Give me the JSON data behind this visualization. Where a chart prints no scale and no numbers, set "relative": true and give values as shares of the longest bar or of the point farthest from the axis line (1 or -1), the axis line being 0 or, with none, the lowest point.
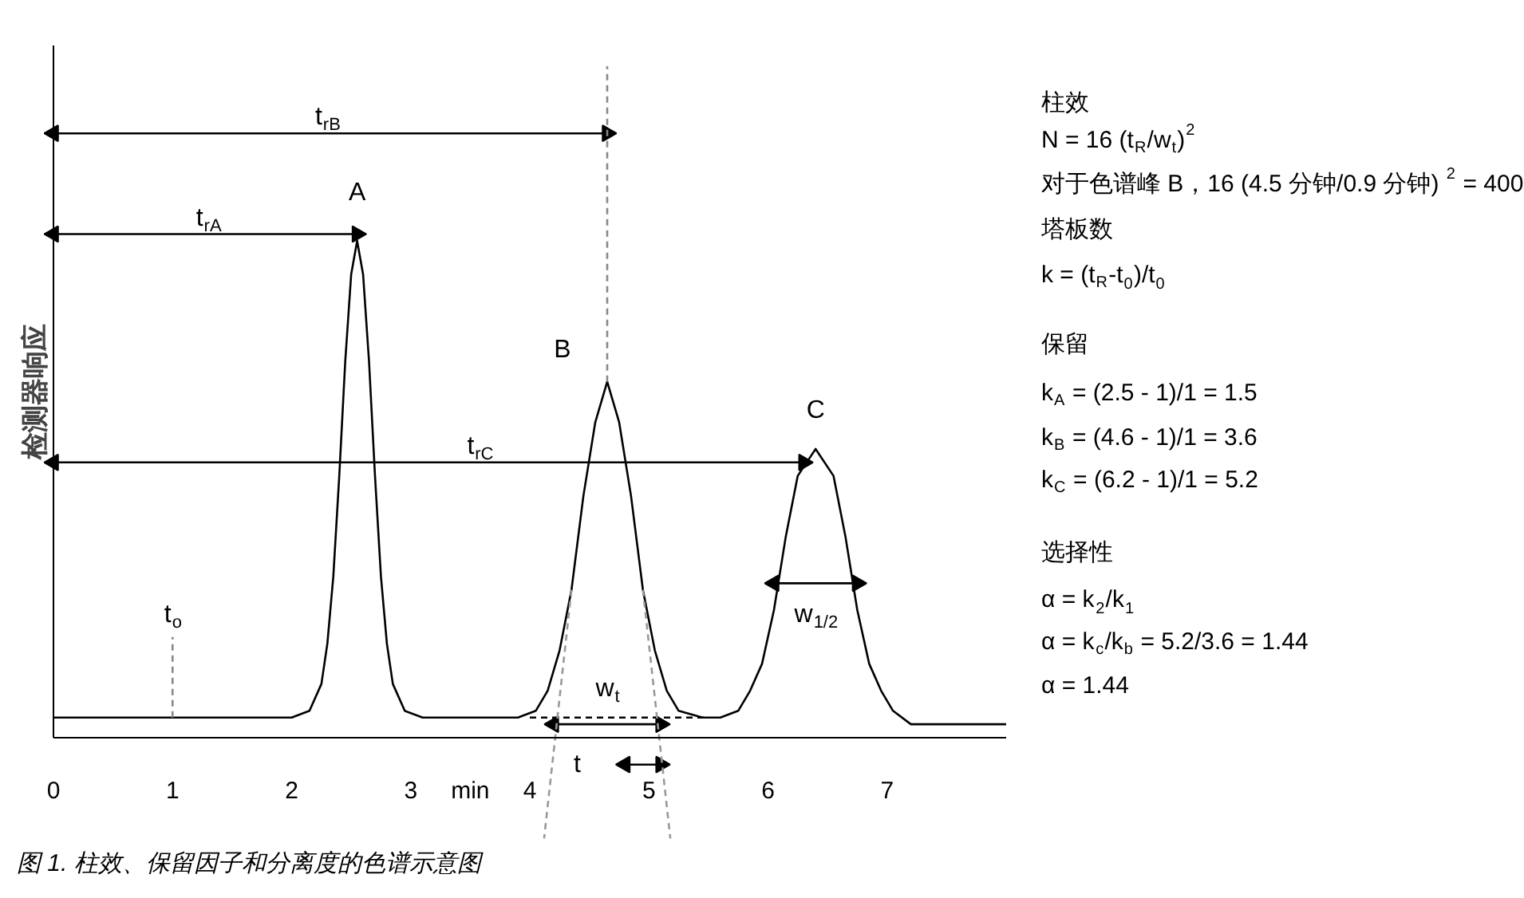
{
  "chart_data": {
    "type": "line",
    "relative": true,
    "ylabel": "检测器响应",
    "tick_labels": "x",
    "xlim": [
      0,
      8
    ],
    "xticks": [
      0,
      1,
      2,
      3,
      {
        "value": 3.5,
        "label": "min"
      },
      4,
      5,
      6,
      7
    ],
    "series": [
      {
        "color": "#000000",
        "line_style": "solid",
        "x": [
          0,
          2.0,
          2.15,
          2.25,
          2.3,
          2.35,
          2.4,
          2.45,
          2.5,
          2.55,
          2.6,
          2.65,
          2.7,
          2.75,
          2.8,
          2.85,
          2.95,
          3.1,
          3.9,
          4.05,
          4.15,
          4.25,
          4.35,
          4.45,
          4.55,
          4.65,
          4.75,
          4.85,
          4.95,
          5.05,
          5.15,
          5.25,
          5.45,
          5.6,
          5.75,
          5.85,
          5.95,
          6.05,
          6.15,
          6.25,
          6.4,
          6.55,
          6.65,
          6.75,
          6.85,
          6.95,
          7.05,
          7.2,
          8.0
        ],
        "values": [
          0.03,
          0.03,
          0.04,
          0.08,
          0.14,
          0.24,
          0.39,
          0.56,
          0.69,
          0.74,
          0.69,
          0.56,
          0.39,
          0.24,
          0.14,
          0.08,
          0.04,
          0.03,
          0.03,
          0.04,
          0.07,
          0.13,
          0.22,
          0.36,
          0.47,
          0.53,
          0.47,
          0.36,
          0.22,
          0.13,
          0.07,
          0.04,
          0.03,
          0.03,
          0.04,
          0.07,
          0.11,
          0.19,
          0.3,
          0.39,
          0.43,
          0.39,
          0.3,
          0.19,
          0.11,
          0.07,
          0.04,
          0.02,
          0.02
        ]
      },
      {
        "color": "#000000",
        "line_style": "solid",
        "marker": "triangle",
        "x": [
          0,
          4.65
        ],
        "values": [
          0.9,
          0.9
        ]
      },
      {
        "color": "#000000",
        "line_style": "solid",
        "marker": "triangle",
        "x": [
          0,
          2.55
        ],
        "values": [
          0.75,
          0.75
        ]
      },
      {
        "color": "#000000",
        "line_style": "solid",
        "marker": "triangle",
        "x": [
          0,
          6.3
        ],
        "values": [
          0.41,
          0.41
        ]
      },
      {
        "color": "#000000",
        "line_style": "solid",
        "marker": "triangle",
        "x": [
          4.2,
          5.1
        ],
        "values": [
          0.02,
          0.02
        ]
      },
      {
        "color": "#000000",
        "line_style": "solid",
        "marker": "triangle",
        "x": [
          4.8,
          5.1
        ],
        "values": [
          -0.04,
          -0.04
        ]
      },
      {
        "color": "#000000",
        "line_style": "solid",
        "marker": "triangle",
        "x": [
          6.05,
          6.75
        ],
        "values": [
          0.23,
          0.23
        ]
      },
      {
        "color": "#888888",
        "line_style": "dashed",
        "x": [
          4.65,
          4.65
        ],
        "values": [
          0.53,
          1.0
        ]
      },
      {
        "color": "#888888",
        "line_style": "dashed",
        "x": [
          1,
          1
        ],
        "values": [
          0.03,
          0.15
        ]
      },
      {
        "color": "#000000",
        "line_style": "dashed",
        "x": [
          4.0,
          5.5
        ],
        "values": [
          0.03,
          0.03
        ]
      },
      {
        "color": "#999999",
        "line_style": "dashed",
        "x": [
          4.35,
          4.12
        ],
        "values": [
          0.22,
          -0.15
        ]
      },
      {
        "color": "#999999",
        "line_style": "dashed",
        "x": [
          4.95,
          5.18
        ],
        "values": [
          0.22,
          -0.15
        ]
      }
    ],
    "annotations": [
      {
        "text": "A",
        "x": 2.55,
        "y": 0.74
      },
      {
        "text": "B",
        "x": 4.65,
        "y": 0.53
      },
      {
        "text": "C",
        "x": 6.4,
        "y": 0.43
      },
      {
        "text": "t$_{rB}$",
        "x": 2.3,
        "y": 0.9
      },
      {
        "text": "t$_{rA}$",
        "x": 1.3,
        "y": 0.75
      },
      {
        "text": "t$_{rC}$",
        "x": 3.58,
        "y": 0.41
      },
      {
        "text": "t$_{o}$",
        "x": 1,
        "y": 0.15
      },
      {
        "text": "w$_{t}$",
        "x": 4.65,
        "y": 0.02
      },
      {
        "text": "t",
        "x": 4.8,
        "y": -0.04
      },
      {
        "text": "w$_{1/2}$",
        "x": 6.4,
        "y": 0.23
      },
      "柱效",
      "N = 16 (t$_{R}$/w$_{t}$)$^{2}$",
      "对于色谱峰 B，16 (4.5 分钟/0.9 分钟) $^{2}$ = 400",
      "塔板数",
      "k = (t$_{R}$-t$_{0}$)/t$_{0}$",
      "保留",
      "k$_{A}$ = (2.5 - 1)/1 = 1.5",
      "k$_{B}$ = (4.6 - 1)/1 = 3.6",
      "k$_{C}$ = (6.2 - 1)/1 = 5.2",
      "选择性",
      "α = k$_{2}$/k$_{1}$",
      "α = k$_{c}$/k$_{b}$ = 5.2/3.6 = 1.44",
      "α = 1.44",
      "图 1. 柱效、保留因子和分离度的色谱示意图"
    ]
  }
}
